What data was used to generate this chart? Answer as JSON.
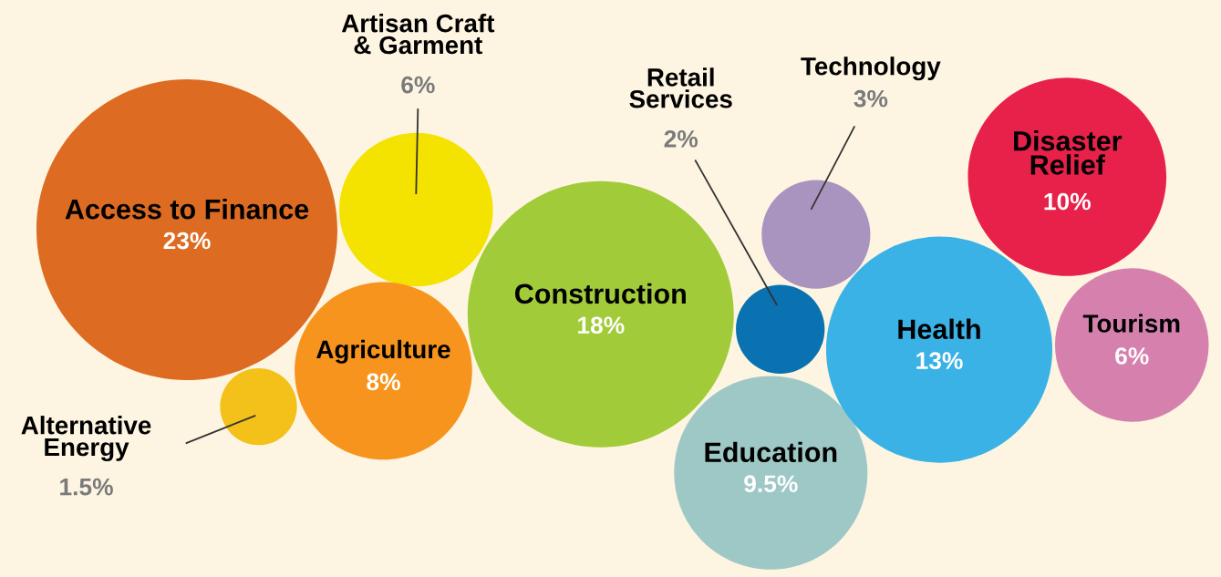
{
  "chart_data": {
    "type": "other",
    "categories": [
      "Access to Finance",
      "Artisan Craft\n& Garment",
      "Agriculture",
      "Alternative\nEnergy",
      "Construction",
      "Retail\nServices",
      "Technology",
      "Education",
      "Health",
      "Disaster\nRelief",
      "Tourism"
    ],
    "values": [
      23,
      6,
      8,
      1.5,
      18,
      2,
      3,
      9.5,
      13,
      10,
      6
    ],
    "value_labels": [
      "23%",
      "6%",
      "8%",
      "1.5%",
      "18%",
      "2%",
      "3%",
      "9.5%",
      "13%",
      "10%",
      "6%"
    ],
    "colors": [
      "#dd6c22",
      "#f4e200",
      "#f7941e",
      "#f4c01a",
      "#a2cb3a",
      "#0a72b0",
      "#a994c0",
      "#9ec8c6",
      "#3ab2e6",
      "#e8214a",
      "#d681ad"
    ]
  }
}
